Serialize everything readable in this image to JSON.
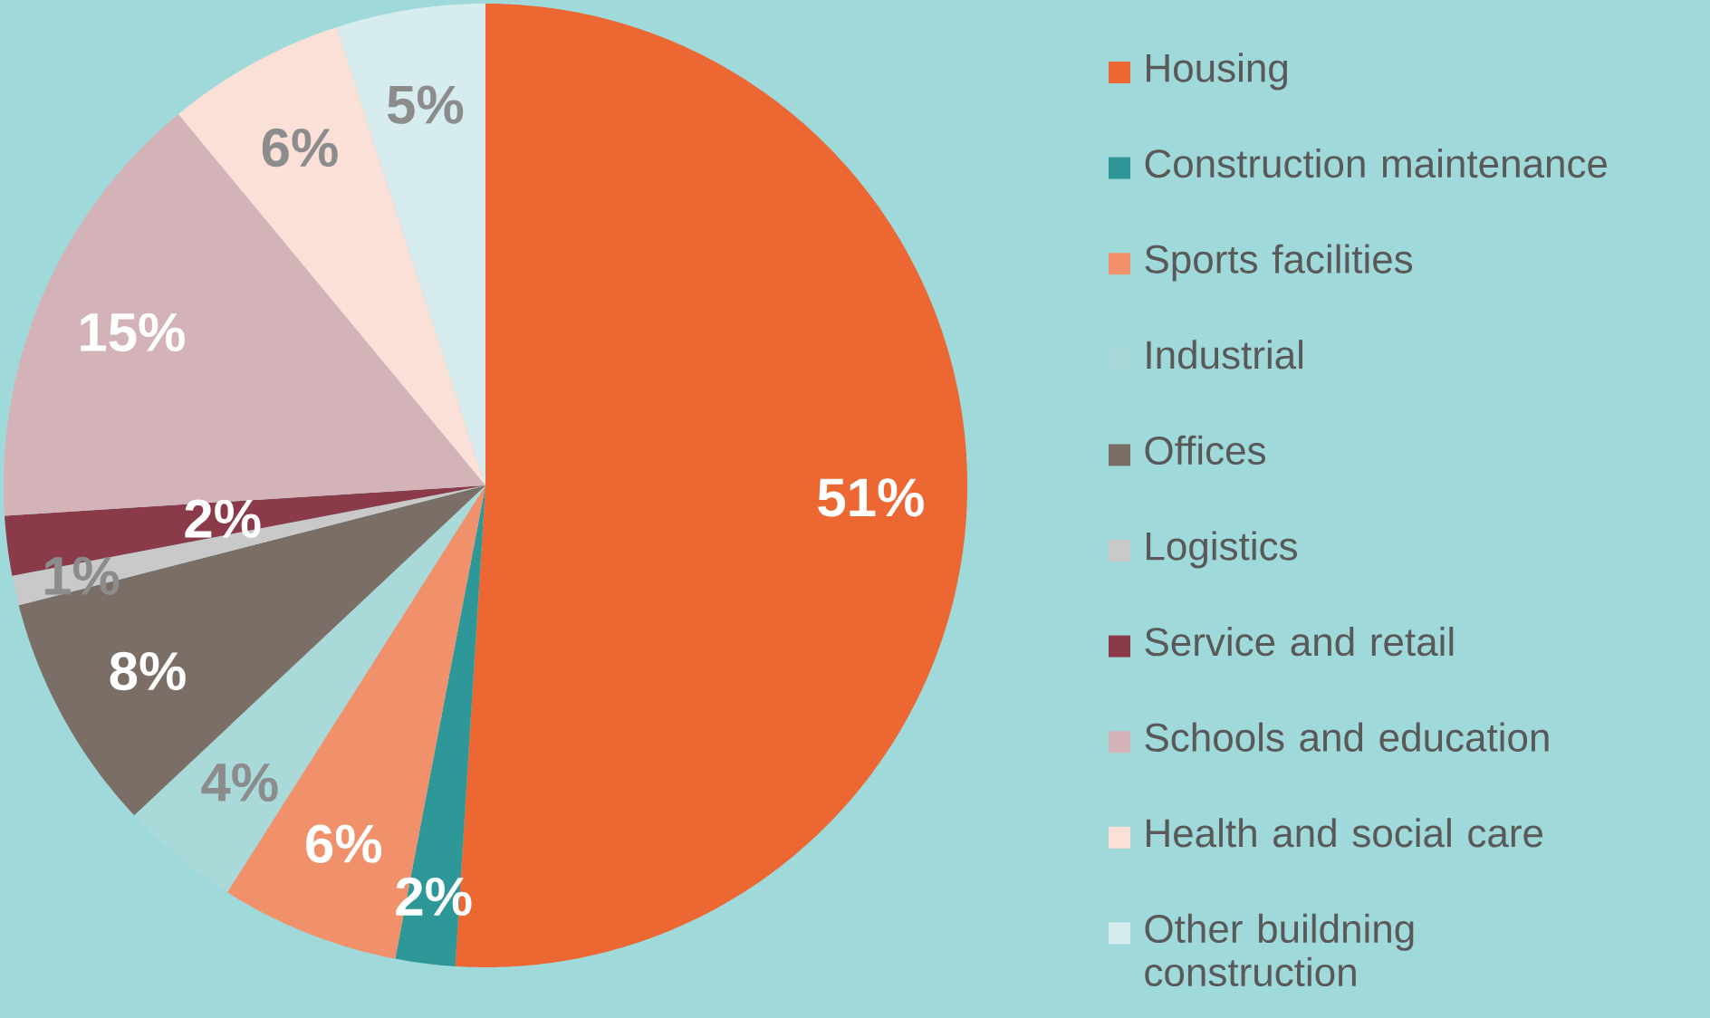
{
  "chart_data": {
    "type": "pie",
    "categories": [
      "Housing",
      "Construction maintenance",
      "Sports facilities",
      "Industrial",
      "Offices",
      "Logistics",
      "Service and retail",
      "Schools and education",
      "Health and social care",
      "Other buildning construction"
    ],
    "values": [
      51,
      2,
      6,
      4,
      8,
      1,
      2,
      15,
      6,
      5
    ],
    "value_labels": [
      "51%",
      "2%",
      "6%",
      "4%",
      "8%",
      "1%",
      "2%",
      "15%",
      "6%",
      "5%"
    ],
    "colors": [
      "#ec6731",
      "#2e9797",
      "#f1916c",
      "#a9d9d9",
      "#7a6e66",
      "#c9c9c9",
      "#8b3a4a",
      "#d3b3b8",
      "#fbe0d8",
      "#d6ecee"
    ],
    "legend": "right"
  }
}
